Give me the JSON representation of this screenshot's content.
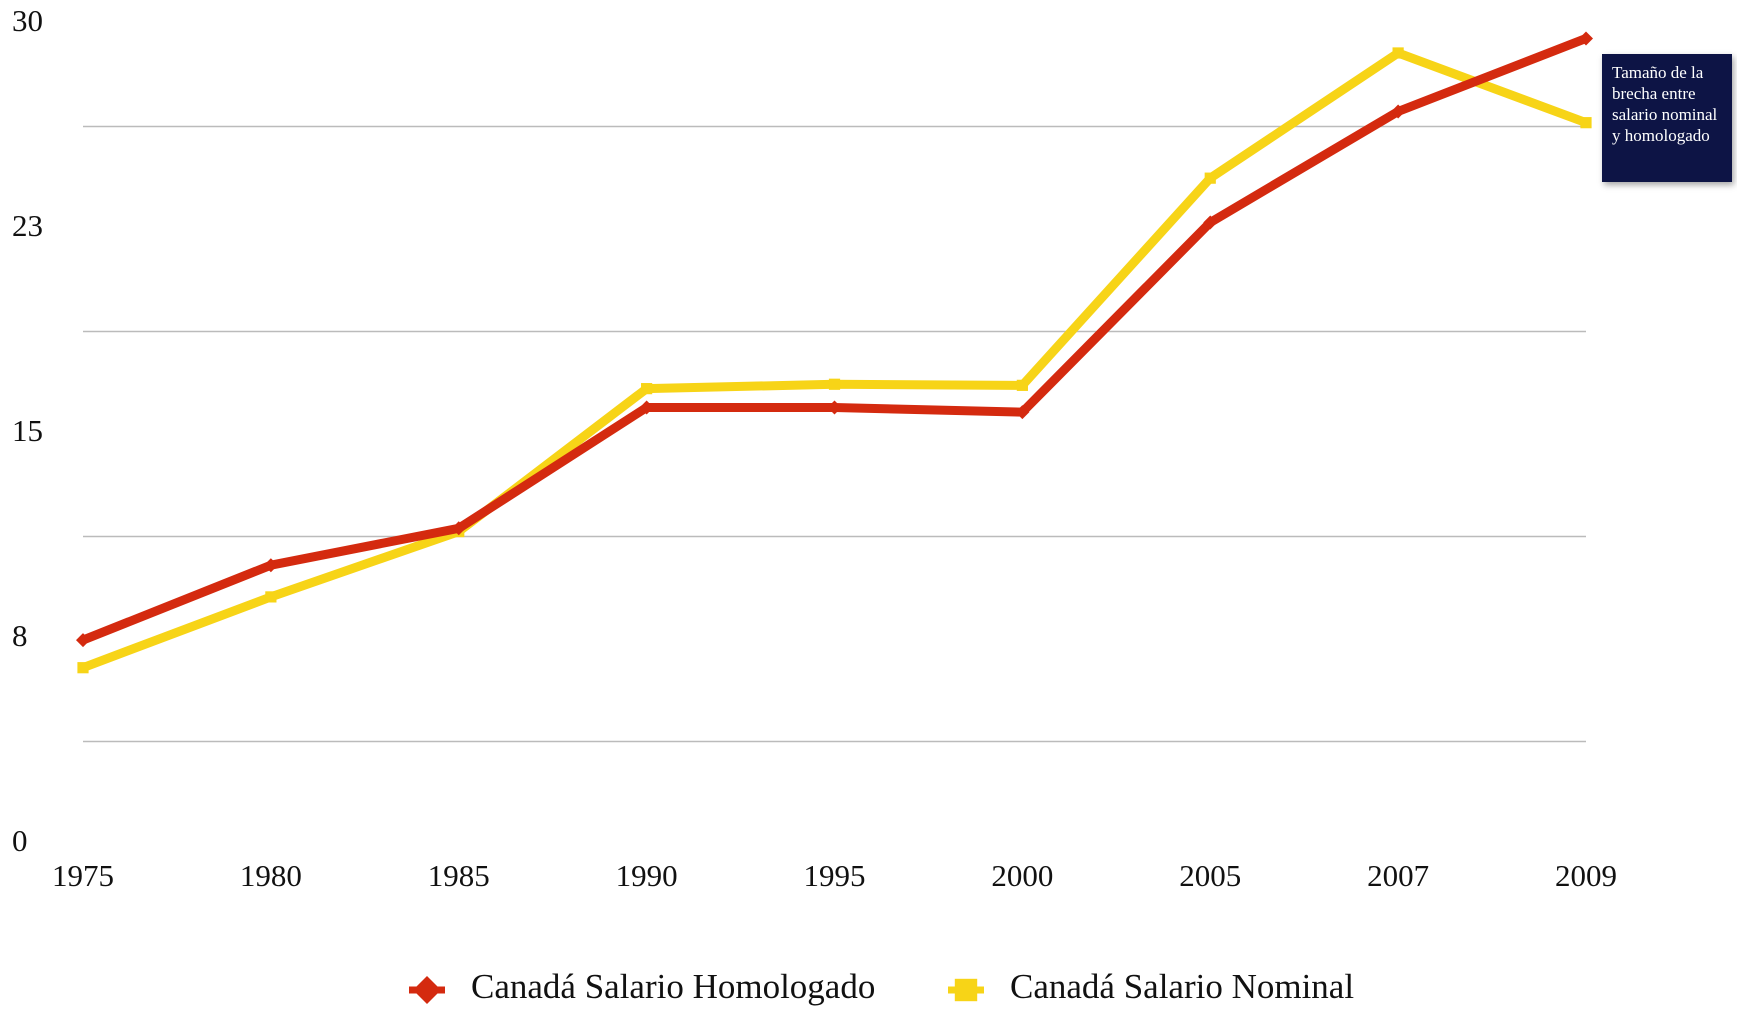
{
  "chart_data": {
    "type": "line",
    "categories": [
      "1975",
      "1980",
      "1985",
      "1990",
      "1995",
      "2000",
      "2005",
      "2007",
      "2009"
    ],
    "series": [
      {
        "name": "Canadá Salario Homologado",
        "color": "#d42a0f",
        "marker": "diamond",
        "values": [
          7.46,
          10.2,
          11.55,
          15.97,
          15.97,
          15.8,
          22.74,
          26.8,
          29.47
        ]
      },
      {
        "name": "Canadá Salario Nominal",
        "color": "#f7d417",
        "marker": "square",
        "values": [
          6.45,
          9.04,
          11.43,
          16.66,
          16.82,
          16.78,
          24.36,
          28.94,
          26.39
        ]
      }
    ],
    "ylim": [
      0,
      30
    ],
    "yticks": [
      0,
      {
        "value": 7.5,
        "label": "8"
      },
      15,
      {
        "value": 22.5,
        "label": "23"
      },
      30
    ],
    "grid_values": [
      3.75,
      11.25,
      18.75,
      26.25
    ],
    "annotation": "Tamaño de la brecha entre salario nominal y homologado",
    "legend": "bottom"
  }
}
